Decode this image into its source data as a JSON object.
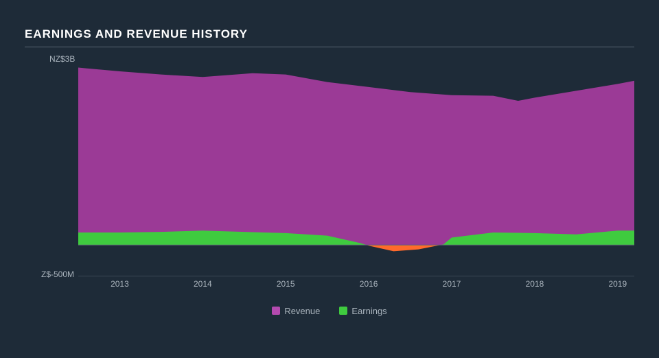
{
  "title": "EARNINGS AND REVENUE HISTORY",
  "chart": {
    "type": "area",
    "background_color": "#1e2b38",
    "text_color": "#aab4bd",
    "title_color": "#ffffff",
    "rule_color": "#5a6773",
    "baseline_color": "#5a6773",
    "axis_line_color": "#5a6773",
    "label_fontsize": 12,
    "title_fontsize": 17,
    "ylabel_top": "NZ$3B",
    "ylabel_bottom": "Z$-500M",
    "y_domain": [
      -500,
      3000
    ],
    "y_baseline": 0,
    "x_domain": [
      2012.5,
      2019.2
    ],
    "x_ticks": [
      2013,
      2014,
      2015,
      2016,
      2017,
      2018,
      2019
    ],
    "series": [
      {
        "name": "Revenue",
        "color": "#9b3a96",
        "legend_color": "#b44aaf",
        "data": [
          [
            2012.5,
            2830
          ],
          [
            2013,
            2770
          ],
          [
            2013.5,
            2720
          ],
          [
            2014,
            2680
          ],
          [
            2014.6,
            2740
          ],
          [
            2015,
            2720
          ],
          [
            2015.5,
            2600
          ],
          [
            2016,
            2520
          ],
          [
            2016.5,
            2440
          ],
          [
            2017,
            2390
          ],
          [
            2017.5,
            2380
          ],
          [
            2017.8,
            2300
          ],
          [
            2018,
            2350
          ],
          [
            2018.5,
            2460
          ],
          [
            2019,
            2570
          ],
          [
            2019.2,
            2620
          ]
        ]
      },
      {
        "name": "Earnings",
        "color_pos": "#3fcb3f",
        "color_neg": "#ff6a2b",
        "legend_color": "#3fcb3f",
        "data": [
          [
            2012.5,
            200
          ],
          [
            2013,
            200
          ],
          [
            2013.5,
            210
          ],
          [
            2014,
            230
          ],
          [
            2014.5,
            210
          ],
          [
            2015,
            190
          ],
          [
            2015.5,
            150
          ],
          [
            2015.9,
            30
          ],
          [
            2016.0,
            -10
          ],
          [
            2016.3,
            -100
          ],
          [
            2016.6,
            -70
          ],
          [
            2016.9,
            10
          ],
          [
            2017,
            120
          ],
          [
            2017.5,
            200
          ],
          [
            2018,
            190
          ],
          [
            2018.5,
            170
          ],
          [
            2019,
            230
          ],
          [
            2019.2,
            230
          ]
        ]
      }
    ],
    "legend": [
      {
        "label": "Revenue",
        "color": "#b44aaf"
      },
      {
        "label": "Earnings",
        "color": "#3fcb3f"
      }
    ]
  }
}
